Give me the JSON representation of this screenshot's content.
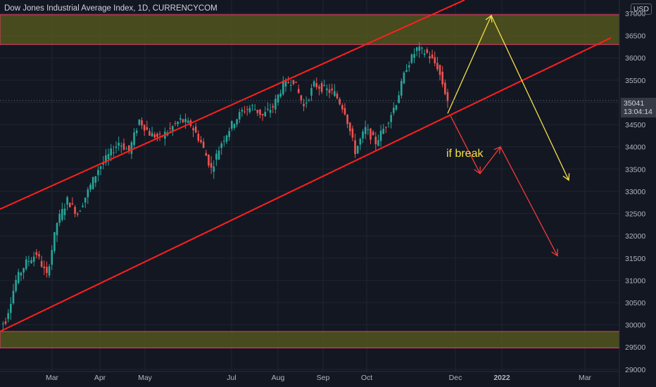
{
  "header": {
    "title": "Dow Jones Industrial Average Index, 1D, CURRENCYCOM",
    "currency": "USD"
  },
  "price_label": {
    "price": "35041",
    "countdown": "13:04:14"
  },
  "annotation": "if break",
  "colors": {
    "background": "#131722",
    "up": "#26a69a",
    "down": "#ef5350",
    "channel": "#ff1f1f",
    "zone_fill": "#5b5e1e",
    "zone_border": "#f23b6a",
    "bull_path": "#f5e14b",
    "bear_path": "#ef3b3b",
    "grid": "#1f2433"
  },
  "chart_data": {
    "type": "candlestick",
    "title": "Dow Jones Industrial Average Index, 1D, CURRENCYCOM",
    "x_ticks": [
      "Mar",
      "Apr",
      "May",
      "Jul",
      "Aug",
      "Sep",
      "Oct",
      "Dec",
      "2022",
      "Mar"
    ],
    "y_ticks": [
      29000,
      29500,
      30000,
      30500,
      31000,
      31500,
      32000,
      32500,
      33000,
      33500,
      34000,
      34500,
      35000,
      35500,
      36000,
      36500,
      37000
    ],
    "ylim": [
      28950,
      37300
    ],
    "grid": true,
    "series": [
      {
        "x": [
          "Feb 01",
          "Feb 08",
          "Feb 15",
          "Feb 22",
          "Mar 01",
          "Mar 08",
          "Mar 15",
          "Mar 22",
          "Mar 29",
          "Apr 05",
          "Apr 12",
          "Apr 19",
          "Apr 26",
          "May 03",
          "May 10",
          "May 17",
          "May 24",
          "May 31",
          "Jun 07",
          "Jun 14",
          "Jun 21",
          "Jun 28",
          "Jul 05",
          "Jul 12",
          "Jul 19",
          "Jul 26",
          "Aug 02",
          "Aug 09",
          "Aug 16",
          "Aug 23",
          "Aug 30",
          "Sep 06",
          "Sep 13",
          "Sep 20",
          "Sep 27",
          "Oct 04",
          "Oct 11",
          "Oct 18",
          "Oct 25",
          "Nov 01",
          "Nov 08",
          "Nov 15",
          "Nov 22",
          "Nov 29"
        ],
        "close": [
          30100,
          31000,
          31400,
          31600,
          31100,
          32300,
          32800,
          32500,
          33000,
          33500,
          33800,
          34100,
          33900,
          34600,
          34300,
          34200,
          34400,
          34600,
          34500,
          34100,
          33500,
          34100,
          34500,
          34800,
          34900,
          34700,
          34900,
          35400,
          35500,
          34900,
          35400,
          35300,
          35200,
          34800,
          33900,
          34400,
          34100,
          34500,
          35000,
          35800,
          36200,
          36100,
          35800,
          35041
        ]
      }
    ],
    "zones": [
      {
        "from": 36300,
        "to": 36970
      },
      {
        "from": 29480,
        "to": 29850
      }
    ],
    "channel_lines": [
      {
        "from": [
          "Feb 01",
          32600
        ],
        "to": [
          "Dec 20",
          37300
        ]
      },
      {
        "from": [
          "Feb 01",
          29800
        ],
        "to": [
          "Mar 15",
          36450
        ]
      }
    ],
    "projections": [
      {
        "name": "",
        "points": [
          [
            "Nov 30",
            34750
          ],
          [
            "Jan 01",
            36950
          ],
          [
            "Mar 10",
            33250
          ]
        ]
      },
      {
        "name": "",
        "points": [
          [
            "Nov 30",
            34700
          ],
          [
            "Dec 20",
            33400
          ],
          [
            "Jan 05",
            34000
          ],
          [
            "Mar 01",
            31550
          ]
        ]
      }
    ],
    "current_price": 35041
  }
}
